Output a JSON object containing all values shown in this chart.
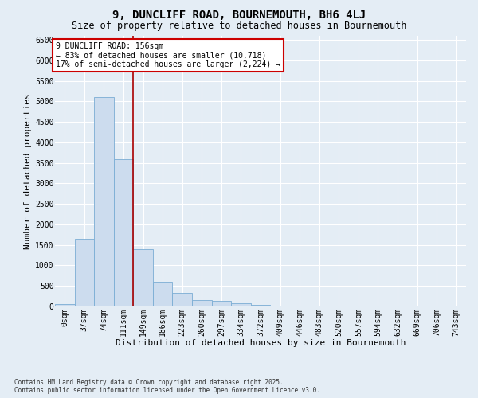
{
  "title": "9, DUNCLIFF ROAD, BOURNEMOUTH, BH6 4LJ",
  "subtitle": "Size of property relative to detached houses in Bournemouth",
  "xlabel": "Distribution of detached houses by size in Bournemouth",
  "ylabel": "Number of detached properties",
  "footer_line1": "Contains HM Land Registry data © Crown copyright and database right 2025.",
  "footer_line2": "Contains public sector information licensed under the Open Government Licence v3.0.",
  "bar_labels": [
    "0sqm",
    "37sqm",
    "74sqm",
    "111sqm",
    "149sqm",
    "186sqm",
    "223sqm",
    "260sqm",
    "297sqm",
    "334sqm",
    "372sqm",
    "409sqm",
    "446sqm",
    "483sqm",
    "520sqm",
    "557sqm",
    "594sqm",
    "632sqm",
    "669sqm",
    "706sqm",
    "743sqm"
  ],
  "bar_values": [
    50,
    1650,
    5100,
    3600,
    1400,
    600,
    330,
    155,
    130,
    80,
    40,
    15,
    5,
    0,
    0,
    0,
    0,
    0,
    0,
    0,
    0
  ],
  "bar_color": "#ccdcee",
  "bar_edge_color": "#7aadd4",
  "vline_color": "#aa0000",
  "vline_x_index": 4,
  "annotation_text": "9 DUNCLIFF ROAD: 156sqm\n← 83% of detached houses are smaller (10,718)\n17% of semi-detached houses are larger (2,224) →",
  "annotation_box_edgecolor": "#cc0000",
  "ylim": [
    0,
    6600
  ],
  "yticks": [
    0,
    500,
    1000,
    1500,
    2000,
    2500,
    3000,
    3500,
    4000,
    4500,
    5000,
    5500,
    6000,
    6500
  ],
  "background_color": "#e4edf5",
  "plot_bg_color": "#e4edf5",
  "grid_color": "#ffffff",
  "title_fontsize": 10,
  "subtitle_fontsize": 8.5,
  "axis_label_fontsize": 8,
  "tick_fontsize": 7,
  "annotation_fontsize": 7,
  "footer_fontsize": 5.5
}
